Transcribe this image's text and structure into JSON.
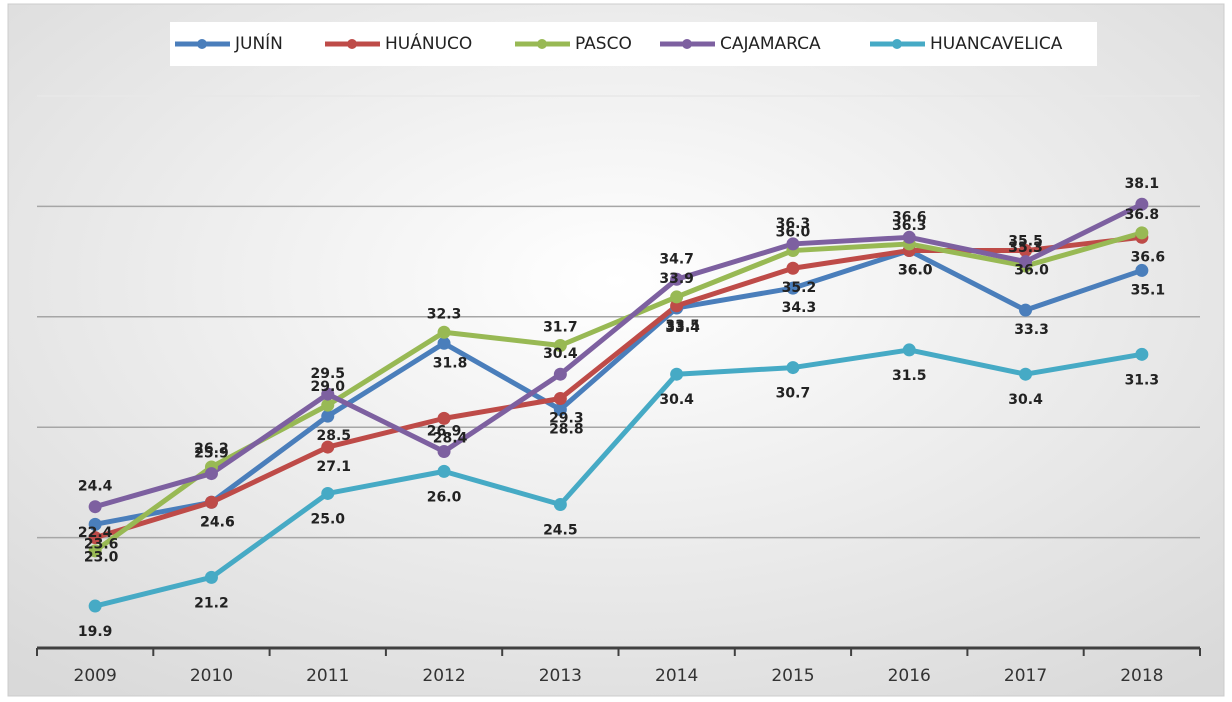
{
  "chart_data": {
    "type": "line",
    "categories": [
      "2009",
      "2010",
      "2011",
      "2012",
      "2013",
      "2014",
      "2015",
      "2016",
      "2017",
      "2018"
    ],
    "series": [
      {
        "name": "JUNÍN",
        "color": "#4a7ebb",
        "values": [
          23.6,
          24.6,
          28.5,
          31.8,
          28.8,
          33.4,
          34.3,
          36.0,
          33.3,
          35.1
        ],
        "value_labels": [
          "23.6",
          "24.6",
          "28.5",
          "31.8",
          "28.8",
          "33.4",
          "34.3",
          "36.0",
          "33.3",
          "35.1"
        ]
      },
      {
        "name": "HUÁNUCO",
        "color": "#be4b48",
        "values": [
          23.0,
          24.6,
          27.1,
          28.4,
          29.3,
          33.5,
          35.2,
          36.0,
          36.0,
          36.6
        ],
        "value_labels": [
          "23.0",
          "24.6",
          "27.1",
          "28.4",
          "29.3",
          "33.5",
          "35.2",
          "36.0",
          "36.0",
          "36.6"
        ]
      },
      {
        "name": "PASCO",
        "color": "#98b954",
        "values": [
          22.4,
          26.2,
          29.0,
          32.3,
          31.7,
          33.9,
          36.0,
          36.3,
          35.3,
          36.8
        ],
        "value_labels": [
          "22.4",
          "26.2",
          "29.0",
          "32.3",
          "31.7",
          "33.9",
          "36.0",
          "36.3",
          "35.3",
          "36.8"
        ]
      },
      {
        "name": "CAJAMARCA",
        "color": "#7d60a0",
        "values": [
          24.4,
          25.9,
          29.5,
          26.9,
          30.4,
          34.7,
          36.3,
          36.6,
          35.5,
          38.1
        ],
        "value_labels": [
          "24.4",
          "25.9",
          "29.5",
          "26.9",
          "30.4",
          "34.7",
          "36.3",
          "36.6",
          "35.5",
          "38.1"
        ]
      },
      {
        "name": "HUANCAVELICA",
        "color": "#46aac5",
        "values": [
          19.9,
          21.2,
          25.0,
          26.0,
          24.5,
          30.4,
          30.7,
          31.5,
          30.4,
          31.3
        ],
        "value_labels": [
          "19.9",
          "21.2",
          "25.0",
          "26.0",
          "24.5",
          "30.4",
          "30.7",
          "31.5",
          "30.4",
          "31.3"
        ]
      }
    ],
    "ylim": [
      18,
      43
    ],
    "yticks": [
      23,
      28,
      33,
      38,
      43
    ],
    "grid": true,
    "legend": "top"
  }
}
